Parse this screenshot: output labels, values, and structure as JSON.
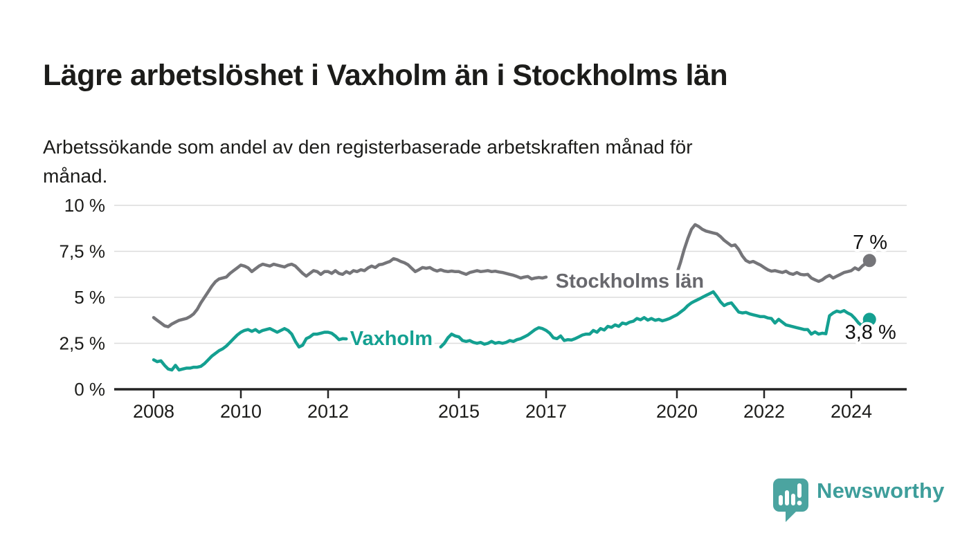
{
  "header": {
    "title": "Lägre arbetslöshet i Vaxholm än i Stockholms län",
    "subtitle": "Arbetssökande som andel av den registerbaserade arbetskraften månad för\nmånad."
  },
  "branding": {
    "logo_text": "Newsworthy",
    "logo_color": "#4ba4a0",
    "text_color": "#3e9e9b"
  },
  "chart_data": {
    "type": "line",
    "title": "Lägre arbetslöshet i Vaxholm än i Stockholms län",
    "subtitle": "Arbetssökande som andel av den registerbaserade arbetskraften månad för månad.",
    "grid": true,
    "legend_position": "inline-labels",
    "x_axis": {
      "ticks": [
        2008,
        2010,
        2012,
        2015,
        2017,
        2020,
        2022,
        2024
      ],
      "tick_labels": [
        "2008",
        "2010",
        "2012",
        "2015",
        "2017",
        "2020",
        "2022",
        "2024"
      ],
      "domain": [
        2007.1,
        2025.25
      ]
    },
    "y_axis": {
      "unit": "%",
      "ticks": [
        0,
        2.5,
        5,
        7.5,
        10
      ],
      "tick_labels": [
        "0 %",
        "2,5 %",
        "5 %",
        "7,5 %",
        "10 %"
      ],
      "domain": [
        0,
        10
      ]
    },
    "colors": {
      "axis": "#242424",
      "gridline": "#dcdcdc"
    },
    "series": [
      {
        "id": "stockholms-lan",
        "name": "Stockholms län",
        "color": "#757579",
        "label": {
          "text": "Stockholms län",
          "year": 2018.92,
          "value": 5.9,
          "color": "#68686d"
        },
        "end_dot": true,
        "end_value": 7.0,
        "end_label": {
          "text": "7 %",
          "year": 2024.43,
          "value": 8.0
        },
        "segments": [
          {
            "start_year": 2008.0,
            "step_months": 1,
            "values": [
              3.9,
              3.75,
              3.6,
              3.45,
              3.4,
              3.55,
              3.65,
              3.75,
              3.8,
              3.85,
              3.95,
              4.1,
              4.35,
              4.7,
              5.0,
              5.3,
              5.6,
              5.85,
              6.0,
              6.05,
              6.1,
              6.3,
              6.45,
              6.6,
              6.75,
              6.7,
              6.6,
              6.4,
              6.55,
              6.7,
              6.8,
              6.75,
              6.7,
              6.8,
              6.75,
              6.7,
              6.65,
              6.75,
              6.8,
              6.7,
              6.5,
              6.3,
              6.15,
              6.3,
              6.45,
              6.4,
              6.25,
              6.4,
              6.4,
              6.3,
              6.45,
              6.3,
              6.25,
              6.4,
              6.3,
              6.45,
              6.4,
              6.5,
              6.45,
              6.6,
              6.7,
              6.62,
              6.77,
              6.8,
              6.88,
              6.95,
              7.1,
              7.05,
              6.95,
              6.88,
              6.77,
              6.58,
              6.4,
              6.5,
              6.62,
              6.58,
              6.62,
              6.5,
              6.43,
              6.5,
              6.43,
              6.4,
              6.43,
              6.4,
              6.4,
              6.32,
              6.25,
              6.35,
              6.4,
              6.45,
              6.4,
              6.42,
              6.45,
              6.4,
              6.42,
              6.38,
              6.35,
              6.3,
              6.25,
              6.2,
              6.13,
              6.05,
              6.1,
              6.13,
              6.0,
              6.05,
              6.08,
              6.05,
              6.1
            ]
          },
          {
            "start_year": 2020.0,
            "step_months": 1,
            "values": [
              6.3,
              6.9,
              7.6,
              8.2,
              8.7,
              8.95,
              8.85,
              8.7,
              8.6,
              8.55,
              8.5,
              8.45,
              8.3,
              8.1,
              7.95,
              7.8,
              7.85,
              7.6,
              7.25,
              7.0,
              6.9,
              6.95,
              6.85,
              6.75,
              6.62,
              6.5,
              6.42,
              6.45,
              6.4,
              6.35,
              6.42,
              6.3,
              6.25,
              6.35,
              6.25,
              6.22,
              6.25,
              6.05,
              5.95,
              5.87,
              5.95,
              6.1,
              6.2,
              6.05,
              6.15,
              6.25,
              6.35,
              6.4,
              6.45,
              6.6,
              6.5,
              6.7,
              6.85,
              7.0
            ]
          }
        ]
      },
      {
        "id": "vaxholm",
        "name": "Vaxholm",
        "color": "#14a091",
        "label": {
          "text": "Vaxholm",
          "year": 2013.45,
          "value": 2.78,
          "color": "#14a091"
        },
        "end_dot": true,
        "end_value": 3.8,
        "end_label": {
          "text": "3,8 %",
          "year": 2024.44,
          "value": 3.12
        },
        "segments": [
          {
            "start_year": 2008.0,
            "step_months": 1,
            "values": [
              1.6,
              1.5,
              1.55,
              1.3,
              1.1,
              1.05,
              1.3,
              1.05,
              1.1,
              1.15,
              1.15,
              1.2,
              1.2,
              1.25,
              1.4,
              1.6,
              1.8,
              1.95,
              2.1,
              2.2,
              2.35,
              2.55,
              2.75,
              2.95,
              3.1,
              3.2,
              3.25,
              3.15,
              3.25,
              3.1,
              3.2,
              3.25,
              3.3,
              3.2,
              3.1,
              3.2,
              3.3,
              3.2,
              3.0,
              2.6,
              2.3,
              2.4,
              2.75,
              2.85,
              3.0,
              3.0,
              3.05,
              3.1,
              3.1,
              3.05,
              2.9,
              2.7,
              2.75,
              2.74
            ]
          },
          {
            "start_year": 2014.5833,
            "step_months": 1,
            "values": [
              2.3,
              2.5,
              2.8,
              3.0,
              2.9,
              2.85,
              2.65,
              2.6,
              2.65,
              2.55,
              2.5,
              2.55,
              2.45,
              2.5,
              2.6,
              2.5,
              2.55,
              2.5,
              2.55,
              2.65,
              2.6,
              2.7,
              2.75,
              2.85,
              2.95,
              3.1,
              3.25,
              3.35,
              3.3,
              3.2,
              3.05,
              2.8,
              2.75,
              2.9,
              2.65,
              2.7,
              2.68,
              2.75,
              2.85,
              2.95,
              3.0,
              3.0,
              3.2,
              3.1,
              3.3,
              3.22,
              3.42,
              3.37,
              3.5,
              3.42,
              3.6,
              3.55,
              3.65,
              3.7,
              3.85,
              3.78,
              3.9,
              3.76,
              3.85,
              3.75,
              3.8,
              3.72,
              3.78,
              3.85,
              3.95,
              4.05,
              4.2,
              4.35,
              4.55,
              4.7,
              4.8,
              4.9,
              5.0,
              5.1,
              5.2,
              5.3,
              5.05,
              4.75,
              4.55,
              4.65,
              4.7,
              4.45,
              4.2,
              4.15,
              4.18,
              4.1,
              4.05,
              4.0,
              3.95,
              3.95,
              3.88,
              3.85,
              3.6,
              3.8,
              3.65,
              3.5,
              3.45,
              3.4,
              3.35,
              3.3,
              3.25,
              3.25,
              3.0,
              3.12,
              3.0,
              3.05,
              3.02,
              4.0,
              4.15,
              4.25,
              4.2,
              4.28,
              4.15,
              4.05,
              3.85,
              3.6,
              3.45,
              3.75,
              3.8
            ]
          }
        ]
      }
    ]
  }
}
